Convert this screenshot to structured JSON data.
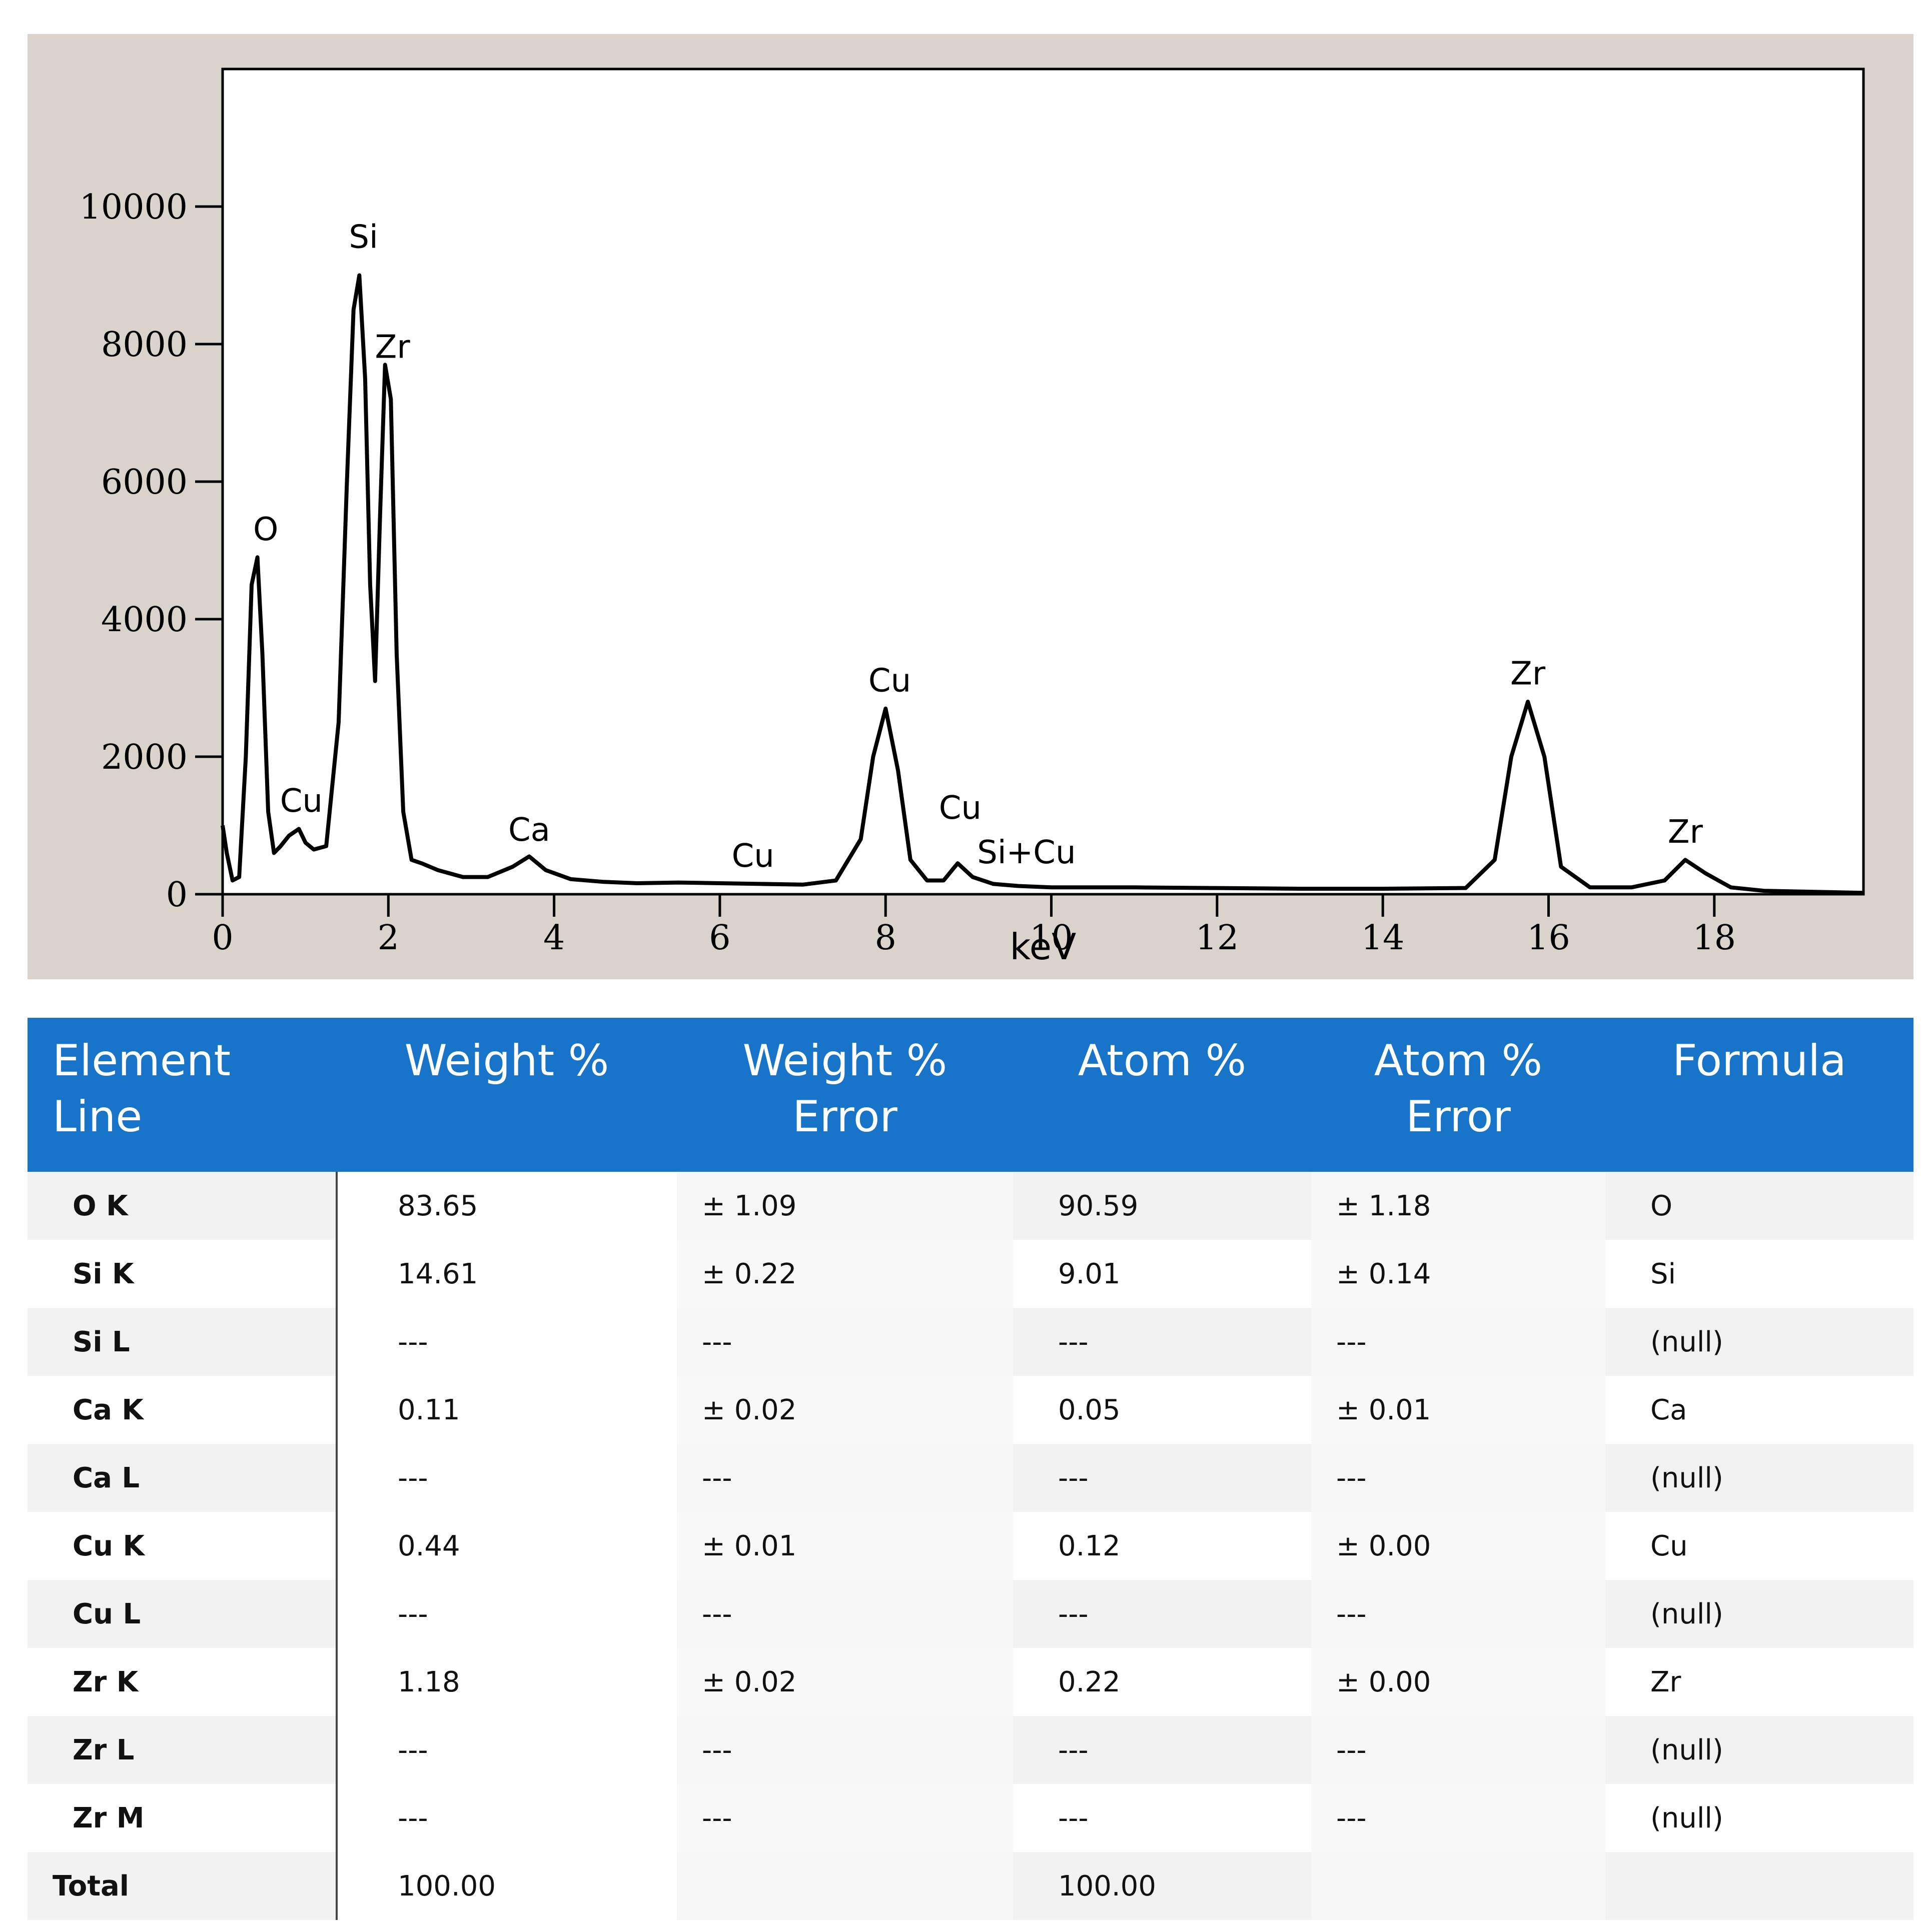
{
  "chart_data": {
    "type": "line",
    "title": "",
    "xlabel": "keV",
    "ylabel": "",
    "xlim": [
      0,
      19.8
    ],
    "ylim": [
      0,
      12000
    ],
    "x_ticks": [
      "0",
      "2",
      "4",
      "6",
      "8",
      "10",
      "12",
      "14",
      "16",
      "18"
    ],
    "y_ticks": [
      "0",
      "2000",
      "4000",
      "6000",
      "8000",
      "10000"
    ],
    "grid": false,
    "series": [
      {
        "x": [
          0,
          0.05,
          0.12,
          0.2,
          0.28,
          0.35,
          0.42,
          0.48,
          0.55,
          0.62,
          0.7,
          0.8,
          0.92,
          1.0,
          1.1,
          1.25,
          1.4,
          1.5,
          1.58,
          1.65,
          1.72,
          1.78,
          1.84,
          1.9,
          1.96,
          2.03,
          2.1,
          2.18,
          2.28,
          2.4,
          2.6,
          2.9,
          3.2,
          3.5,
          3.7,
          3.9,
          4.2,
          4.6,
          5.0,
          5.5,
          6.0,
          6.5,
          7.0,
          7.4,
          7.7,
          7.85,
          8.0,
          8.15,
          8.3,
          8.5,
          8.7,
          8.87,
          9.05,
          9.3,
          9.6,
          10.0,
          11.0,
          12.0,
          13.0,
          14.0,
          15.0,
          15.35,
          15.55,
          15.75,
          15.95,
          16.15,
          16.5,
          17.0,
          17.4,
          17.65,
          17.9,
          18.2,
          18.6,
          19.8
        ],
        "y": [
          1000,
          600,
          200,
          250,
          2000,
          4500,
          4900,
          3500,
          1200,
          600,
          700,
          850,
          950,
          750,
          650,
          700,
          2500,
          6000,
          8500,
          9000,
          7500,
          4500,
          3100,
          5500,
          7700,
          7200,
          3500,
          1200,
          500,
          450,
          350,
          250,
          250,
          400,
          550,
          350,
          220,
          180,
          160,
          170,
          160,
          150,
          140,
          200,
          800,
          2000,
          2700,
          1800,
          500,
          200,
          200,
          450,
          250,
          150,
          120,
          100,
          100,
          90,
          80,
          80,
          90,
          500,
          2000,
          2800,
          2000,
          400,
          100,
          100,
          200,
          500,
          300,
          100,
          50,
          20
        ]
      }
    ],
    "annotations": [
      {
        "text": "O",
        "x": 0.52,
        "y": 5150
      },
      {
        "text": "Si",
        "x": 1.7,
        "y": 9400
      },
      {
        "text": "Zr",
        "x": 2.05,
        "y": 7800
      },
      {
        "text": "Cu",
        "x": 0.95,
        "y": 1200
      },
      {
        "text": "Ca",
        "x": 3.7,
        "y": 780
      },
      {
        "text": "Cu",
        "x": 6.4,
        "y": 400
      },
      {
        "text": "Cu",
        "x": 8.05,
        "y": 2950
      },
      {
        "text": "Cu",
        "x": 8.9,
        "y": 1100
      },
      {
        "text": "Si+Cu",
        "x": 9.7,
        "y": 450
      },
      {
        "text": "Zr",
        "x": 15.75,
        "y": 3050
      },
      {
        "text": "Zr",
        "x": 17.65,
        "y": 750
      }
    ]
  },
  "table": {
    "headers": [
      "Element\nLine",
      "Weight %",
      "Weight %\nError",
      "Atom %",
      "Atom %\nError",
      "Formula"
    ],
    "rows": [
      [
        "O K",
        "83.65",
        "± 1.09",
        "90.59",
        "± 1.18",
        "O"
      ],
      [
        "Si K",
        "14.61",
        "± 0.22",
        "9.01",
        "± 0.14",
        "Si"
      ],
      [
        "Si L",
        "---",
        "---",
        "---",
        "---",
        "(null)"
      ],
      [
        "Ca K",
        "0.11",
        "± 0.02",
        "0.05",
        "± 0.01",
        "Ca"
      ],
      [
        "Ca L",
        "---",
        "---",
        "---",
        "---",
        "(null)"
      ],
      [
        "Cu K",
        "0.44",
        "± 0.01",
        "0.12",
        "± 0.00",
        "Cu"
      ],
      [
        "Cu L",
        "---",
        "---",
        "---",
        "---",
        "(null)"
      ],
      [
        "Zr K",
        "1.18",
        "± 0.02",
        "0.22",
        "± 0.00",
        "Zr"
      ],
      [
        "Zr L",
        "---",
        "---",
        "---",
        "---",
        "(null)"
      ],
      [
        "Zr M",
        "---",
        "---",
        "---",
        "---",
        "(null)"
      ],
      [
        "Total",
        "100.00",
        "",
        "100.00",
        "",
        ""
      ]
    ]
  },
  "colors": {
    "chart_background": "#d9d3cb",
    "plot_background": "#ffffff",
    "line": "#000000",
    "header_background": "#1874c8",
    "header_text": "#ffffff"
  }
}
